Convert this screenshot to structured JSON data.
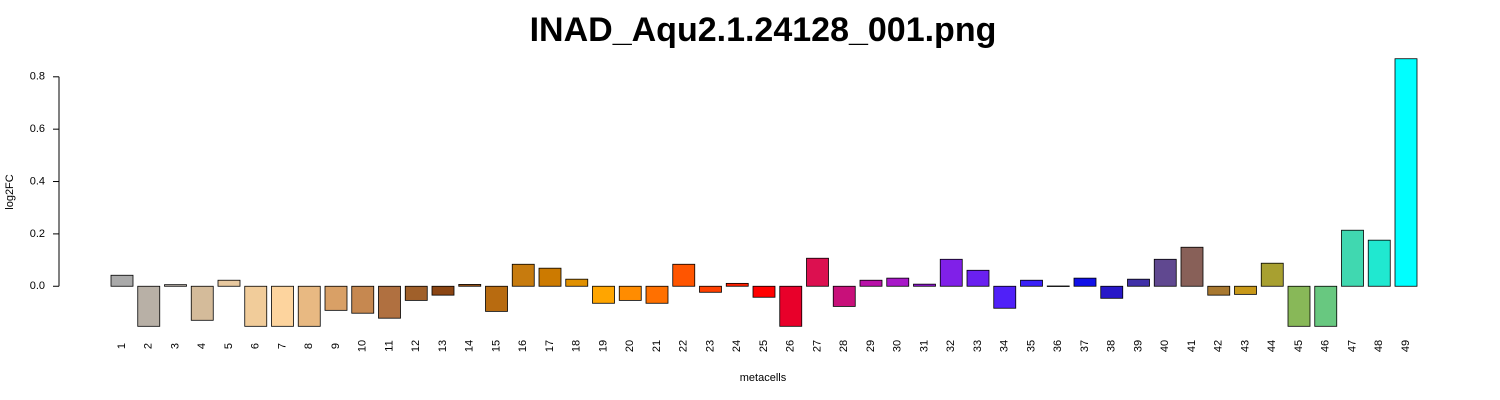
{
  "chart_data": {
    "type": "bar",
    "title": "INAD_Aqu2.1.24128_001.png",
    "x_label": "metacells",
    "y_label": "log2FC",
    "categories": [
      "1",
      "2",
      "3",
      "4",
      "5",
      "6",
      "7",
      "8",
      "9",
      "10",
      "11",
      "12",
      "13",
      "14",
      "15",
      "16",
      "17",
      "18",
      "19",
      "20",
      "21",
      "22",
      "23",
      "24",
      "25",
      "26",
      "27",
      "28",
      "29",
      "30",
      "31",
      "32",
      "33",
      "34",
      "35",
      "36",
      "37",
      "38",
      "39",
      "40",
      "41",
      "42",
      "43",
      "44",
      "45",
      "46",
      "47",
      "48",
      "49"
    ],
    "values": [
      0.042,
      -0.153,
      0.006,
      -0.13,
      0.023,
      -0.153,
      -0.153,
      -0.153,
      -0.092,
      -0.103,
      -0.122,
      -0.054,
      -0.034,
      0.007,
      -0.096,
      0.084,
      0.069,
      0.027,
      -0.065,
      -0.054,
      -0.065,
      0.084,
      -0.023,
      0.011,
      -0.042,
      -0.153,
      0.107,
      -0.077,
      0.023,
      0.031,
      0.008,
      0.103,
      0.061,
      -0.084,
      0.023,
      0.001,
      0.031,
      -0.046,
      0.027,
      0.103,
      0.149,
      -0.034,
      -0.031,
      0.088,
      -0.153,
      -0.153,
      0.214,
      0.176,
      0.869
    ],
    "colors": [
      "#aaaaaa",
      "#b8b0a6",
      "#c8bfb5",
      "#d4bb9a",
      "#e8c9a0",
      "#f1cc9a",
      "#fdd49e",
      "#e8b982",
      "#d9a066",
      "#c68850",
      "#b07040",
      "#a0602a",
      "#8b4513",
      "#a0561a",
      "#b86b10",
      "#c77b0e",
      "#cc7a00",
      "#e09000",
      "#ffa500",
      "#ff8c00",
      "#ff7000",
      "#ff5500",
      "#ff4000",
      "#ff2000",
      "#ff0000",
      "#e8002a",
      "#dc1050",
      "#c8107a",
      "#b810a8",
      "#a818c8",
      "#9418d8",
      "#8020e8",
      "#6a20f0",
      "#5020f8",
      "#3a20f8",
      "#2020f0",
      "#1010e8",
      "#2818c8",
      "#4030a8",
      "#604890",
      "#886058",
      "#a87830",
      "#c89818",
      "#a8a030",
      "#88b858",
      "#68c880",
      "#40d8b0",
      "#20e8d0",
      "#00ffff"
    ],
    "ylim": [
      -0.19,
      0.91
    ],
    "yticks": [
      {
        "value": 0,
        "label": "0.0"
      },
      0.2,
      0.4,
      0.6,
      0.8
    ]
  }
}
